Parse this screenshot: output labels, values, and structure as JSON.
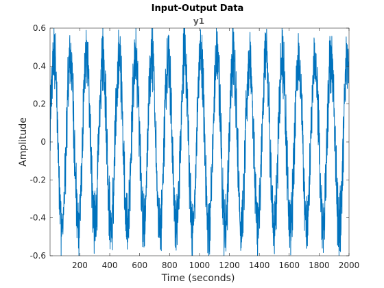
{
  "chart_data": {
    "type": "line",
    "title": "Input-Output Data",
    "subtitle": "y1",
    "xlabel": "Time (seconds)",
    "ylabel": "Amplitude",
    "xlim": [
      1,
      2000
    ],
    "ylim": [
      -0.6,
      0.6
    ],
    "x_ticks": [
      200,
      400,
      600,
      800,
      1000,
      1200,
      1400,
      1600,
      1800,
      2000
    ],
    "y_ticks": [
      -0.6,
      -0.4,
      -0.2,
      0,
      0.2,
      0.4,
      0.6
    ],
    "x_tick_labels": [
      "200",
      "400",
      "600",
      "800",
      "1000",
      "1200",
      "1400",
      "1600",
      "1800",
      "2000"
    ],
    "y_tick_labels": [
      "-0.6",
      "-0.4",
      "-0.2",
      "0",
      "0.2",
      "0.4",
      "0.6"
    ],
    "grid": false,
    "series": [
      {
        "color": "#0072BD",
        "sample_count": 2000,
        "approx_period_seconds": 109,
        "approx_amplitude": 0.45,
        "noise_amplitude": 0.12
      }
    ]
  }
}
